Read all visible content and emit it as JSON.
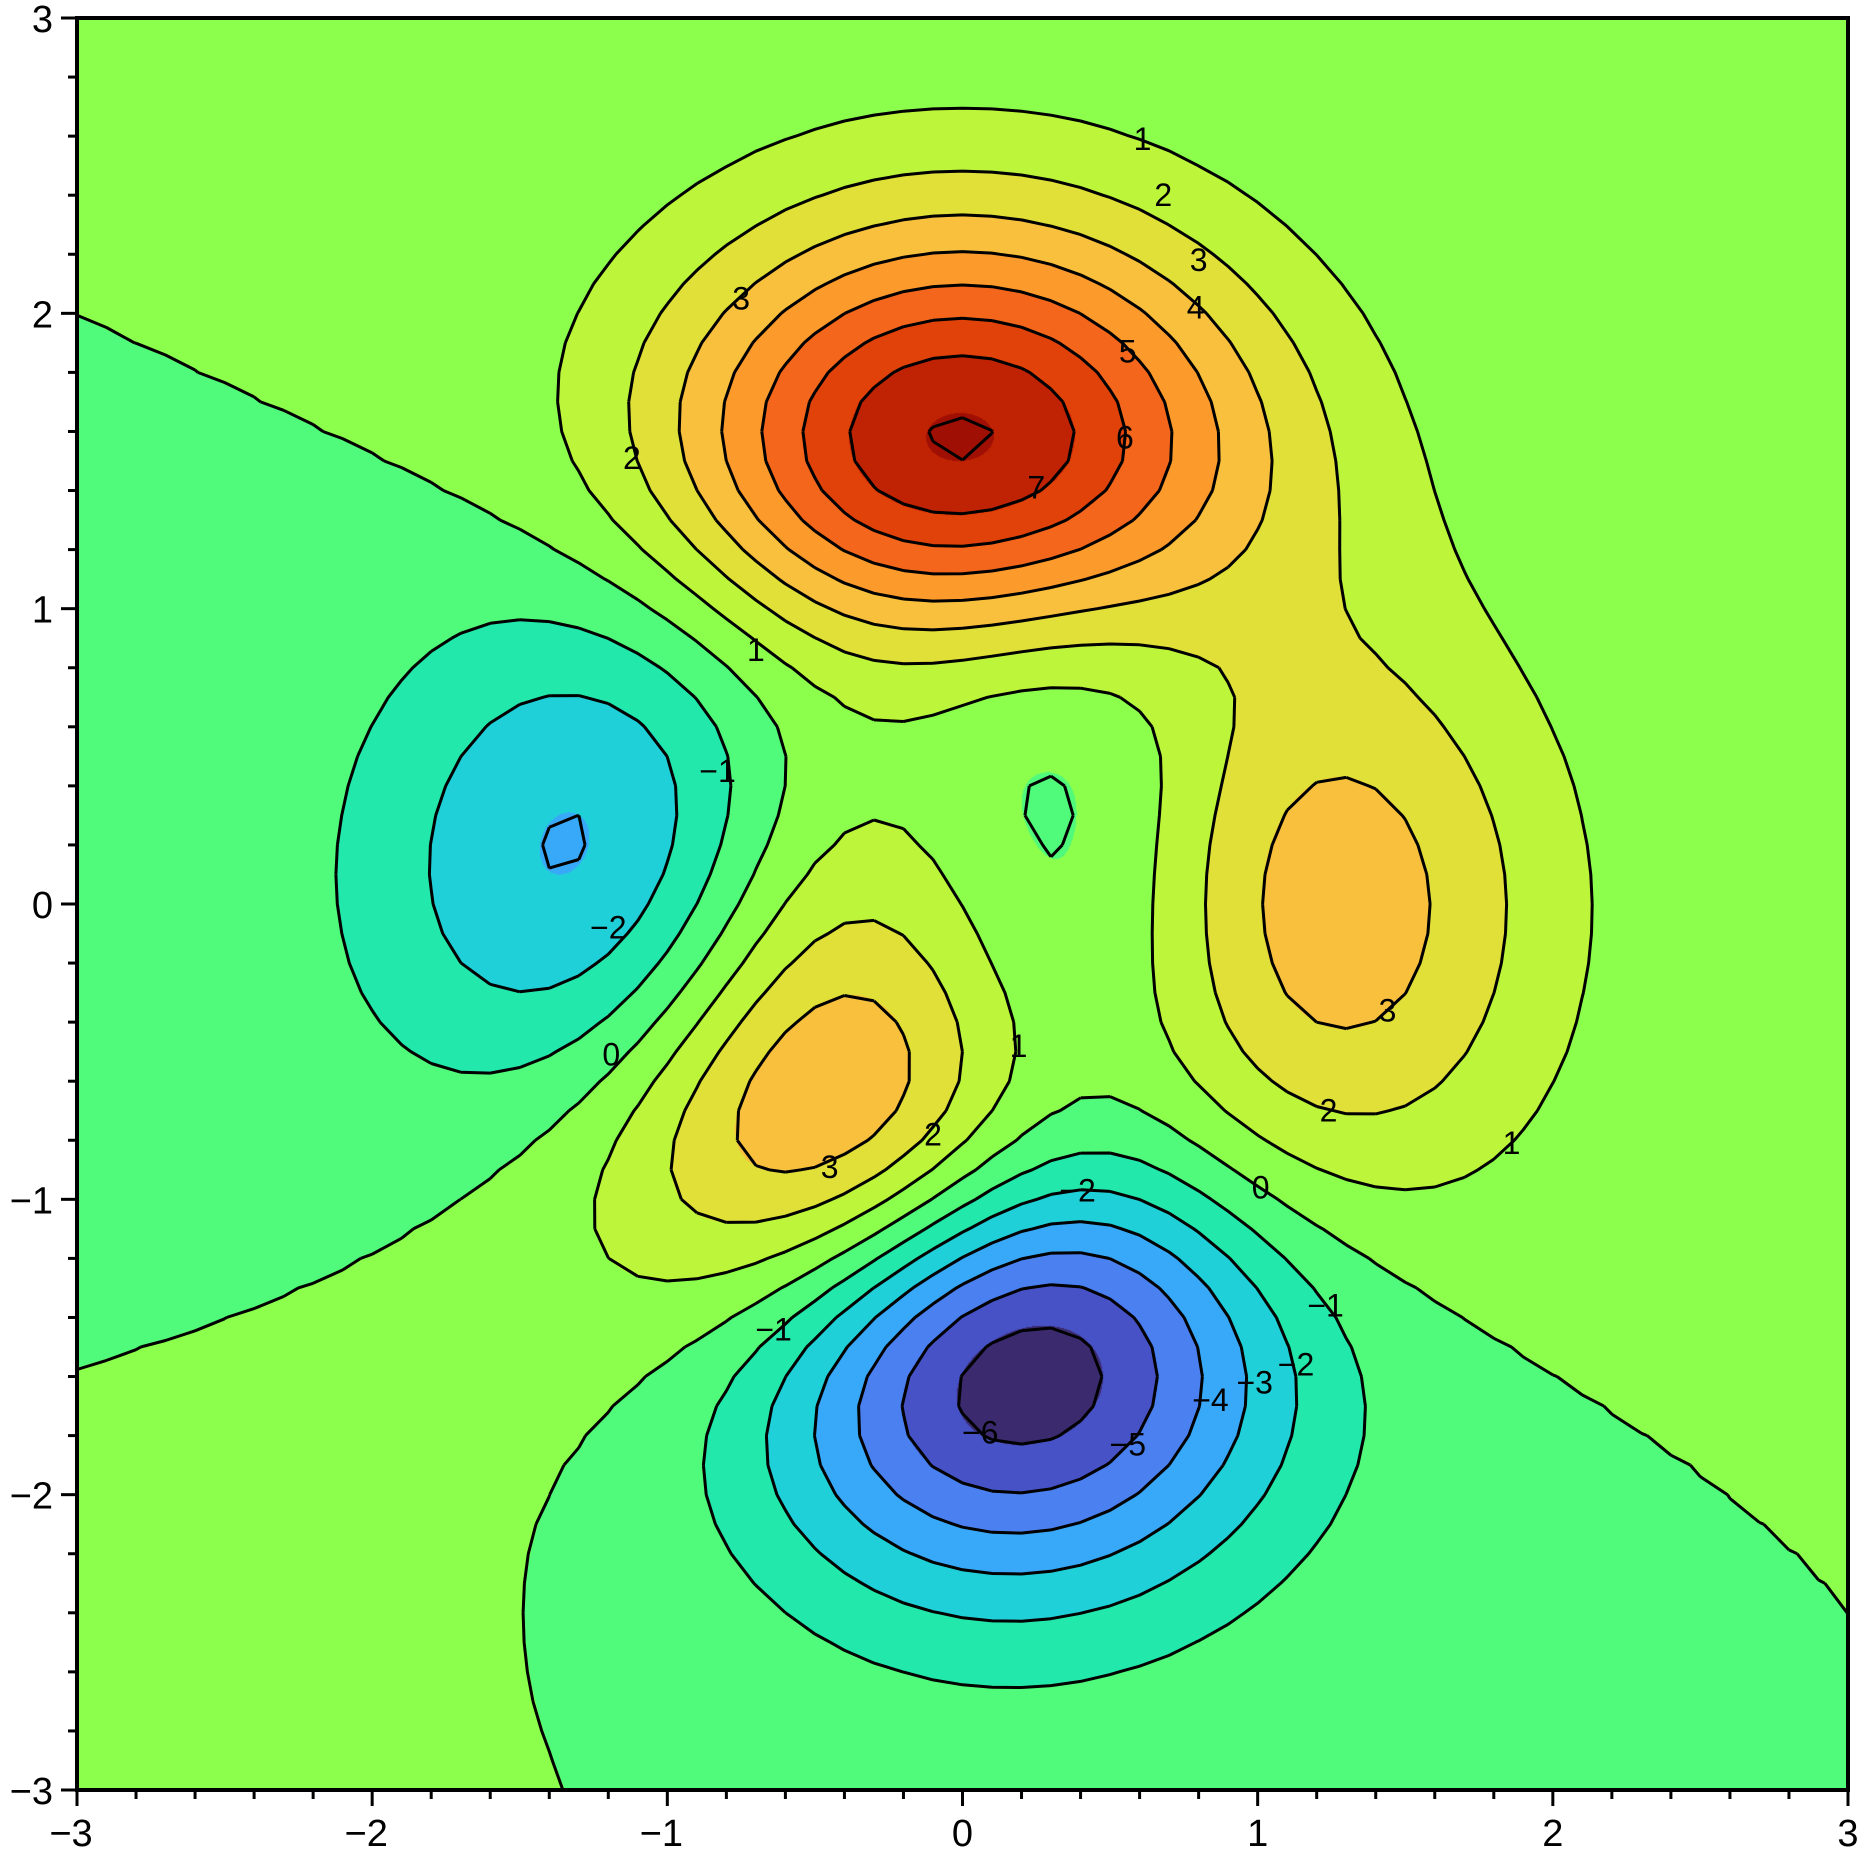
{
  "chart_data": {
    "type": "contourf",
    "function": "peaks",
    "title": "",
    "xlabel": "",
    "ylabel": "",
    "xlim": [
      -3,
      3
    ],
    "ylim": [
      -3,
      3
    ],
    "grid": false,
    "x_ticks": [
      "−3",
      "−2",
      "−1",
      "0",
      "1",
      "2",
      "3"
    ],
    "y_ticks": [
      "−3",
      "−2",
      "−1",
      "0",
      "1",
      "2",
      "3"
    ],
    "levels": [
      -6,
      -5,
      -4,
      -3,
      -2,
      -1,
      0,
      1,
      2,
      3,
      4,
      5,
      6,
      7,
      8
    ],
    "band_colors": [
      "#3b2a6e",
      "#4652c6",
      "#4a80f0",
      "#38a8f8",
      "#20d0d8",
      "#22e8ac",
      "#50fa7a",
      "#8cff4c",
      "#bdf53a",
      "#e0e038",
      "#f8c03c",
      "#fd9a2c",
      "#f4661c",
      "#e04209",
      "#c02304",
      "#a00f03"
    ],
    "line_color": "#000000",
    "contour_labels": [
      "1",
      "2",
      "3",
      "4",
      "5",
      "6",
      "7",
      "3",
      "2",
      "1",
      "−1",
      "−2",
      "0",
      "1",
      "2",
      "3",
      "3",
      "2",
      "1",
      "0",
      "−2",
      "−1",
      "−1",
      "−2",
      "−3",
      "−4",
      "−5",
      "−6"
    ]
  }
}
